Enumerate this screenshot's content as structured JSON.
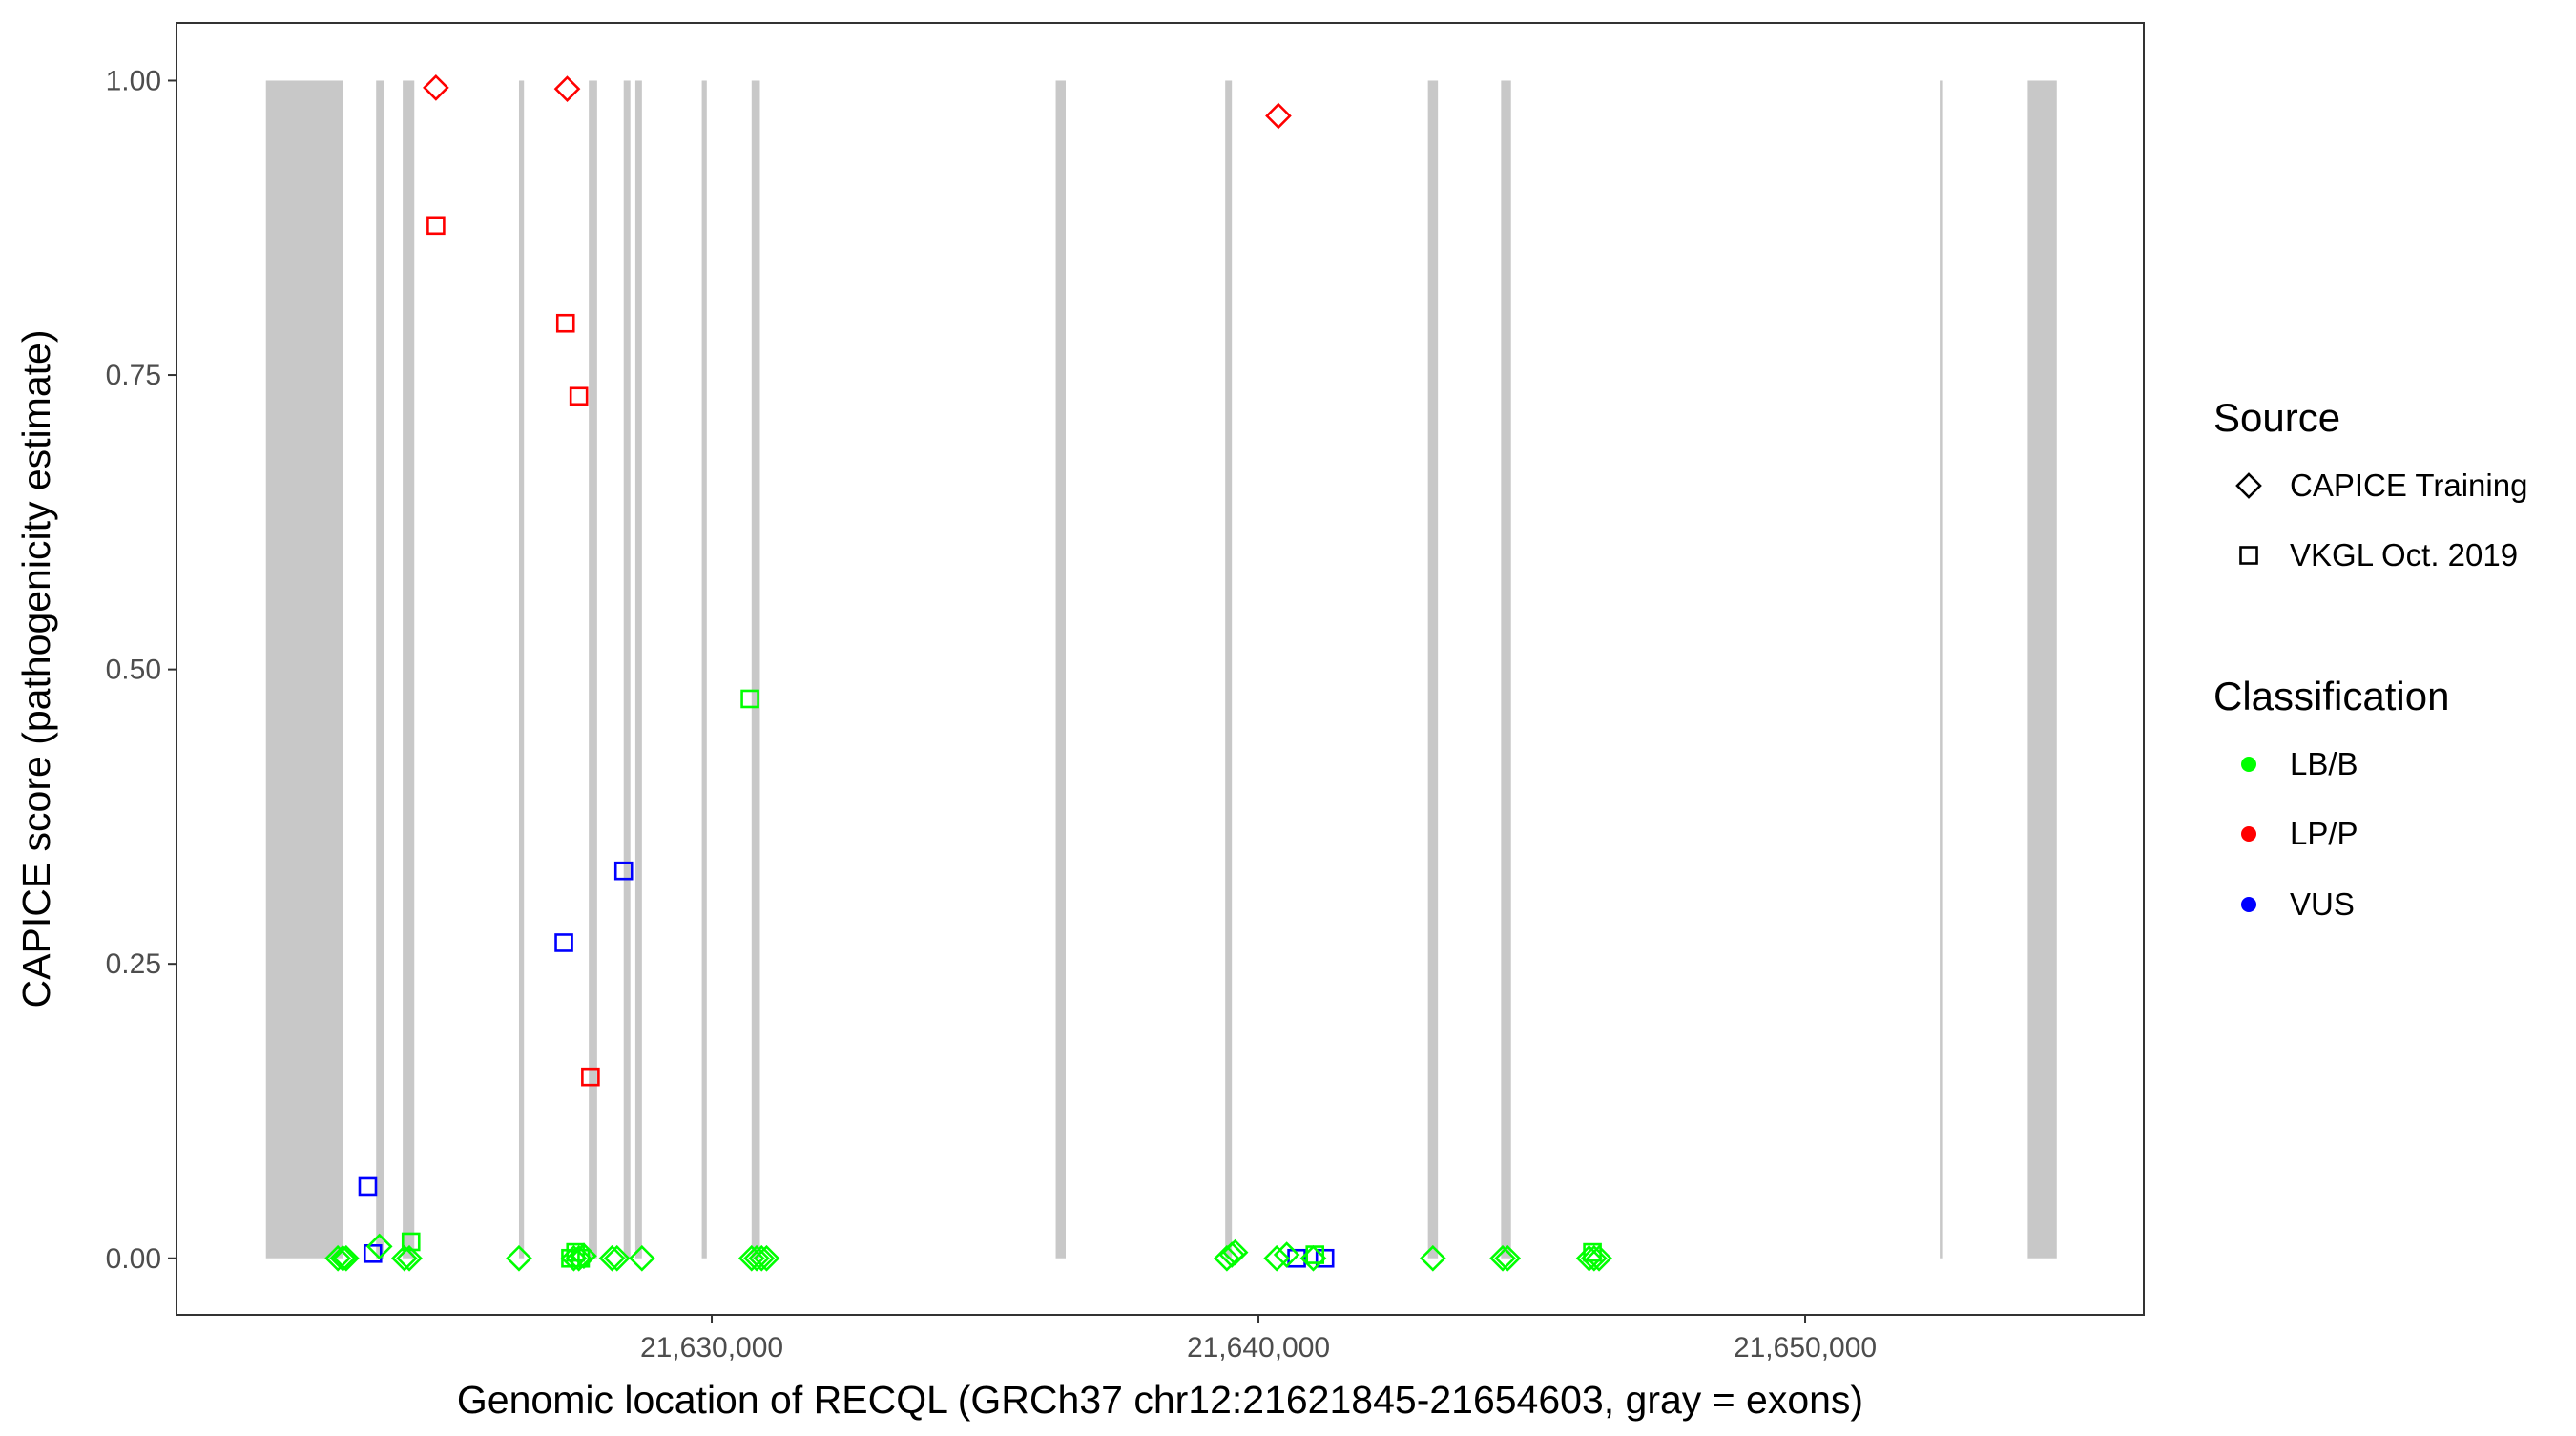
{
  "chart_data": {
    "type": "scatter",
    "title": "",
    "xlabel": "Genomic location of RECQL (GRCh37 chr12:21621845-21654603, gray = exons)",
    "ylabel": "CAPICE score (pathogenicity estimate)",
    "xlim": [
      21620209,
      21656195
    ],
    "ylim": [
      -0.048,
      1.049
    ],
    "x_ticks": [
      21630000,
      21640000,
      21650000
    ],
    "x_tick_labels": [
      "21,630,000",
      "21,640,000",
      "21,650,000"
    ],
    "y_ticks": [
      0,
      0.25,
      0.5,
      0.75,
      1.0
    ],
    "y_tick_labels": [
      "0.00",
      "0.25",
      "0.50",
      "0.75",
      "1.00"
    ],
    "grid": false,
    "legend_position": "right",
    "colors": {
      "LB/B": "#00FF00",
      "LP/P": "#FF0000",
      "VUS": "#0000FF",
      "exon": "#C8C8C8"
    },
    "exons": [
      [
        21621845,
        21623252
      ],
      [
        21623860,
        21624012
      ],
      [
        21624347,
        21624559
      ],
      [
        21626474,
        21626565
      ],
      [
        21627751,
        21627903
      ],
      [
        21628389,
        21628511
      ],
      [
        21628602,
        21628723
      ],
      [
        21629818,
        21629909
      ],
      [
        21630729,
        21630881
      ],
      [
        21636292,
        21636474
      ],
      [
        21639392,
        21639514
      ],
      [
        21643100,
        21643283
      ],
      [
        21644438,
        21644620
      ],
      [
        21652462,
        21652523
      ],
      [
        21654073,
        21654603
      ]
    ],
    "legends": [
      {
        "title": "Source",
        "entries": [
          {
            "label": "CAPICE Training",
            "shape": "diamond"
          },
          {
            "label": "VKGL Oct. 2019",
            "shape": "square"
          }
        ]
      },
      {
        "title": "Classification",
        "entries": [
          {
            "label": "LB/B",
            "shape": "dot"
          },
          {
            "label": "LP/P",
            "shape": "dot"
          },
          {
            "label": "VUS",
            "shape": "dot"
          }
        ]
      }
    ],
    "series": [
      {
        "source": "CAPICE Training",
        "classification": "LP/P",
        "points": [
          [
            21624954,
            0.994
          ],
          [
            21627356,
            0.993
          ],
          [
            21640365,
            0.97
          ]
        ]
      },
      {
        "source": "VKGL Oct. 2019",
        "classification": "LP/P",
        "points": [
          [
            21624954,
            0.877
          ],
          [
            21627325,
            0.794
          ],
          [
            21627568,
            0.732
          ],
          [
            21627781,
            0.154
          ]
        ]
      },
      {
        "source": "VKGL Oct. 2019",
        "classification": "VUS",
        "points": [
          [
            21628389,
            0.329
          ],
          [
            21627295,
            0.268
          ],
          [
            21623708,
            0.061
          ],
          [
            21623800,
            0.004
          ],
          [
            21640699,
            0.0
          ],
          [
            21641216,
            0.0
          ]
        ]
      },
      {
        "source": "VKGL Oct. 2019",
        "classification": "LB/B",
        "points": [
          [
            21630699,
            0.475
          ],
          [
            21624498,
            0.014
          ],
          [
            21627416,
            0.0
          ],
          [
            21627508,
            0.005
          ],
          [
            21627599,
            0.0
          ],
          [
            21641033,
            0.003
          ],
          [
            21646109,
            0.005
          ]
        ]
      },
      {
        "source": "CAPICE Training",
        "classification": "LB/B",
        "points": [
          [
            21623161,
            0.0
          ],
          [
            21623252,
            0.0
          ],
          [
            21623313,
            0.0
          ],
          [
            21623921,
            0.01
          ],
          [
            21624377,
            0.0
          ],
          [
            21624468,
            0.0
          ],
          [
            21626474,
            0.0
          ],
          [
            21627477,
            0.0
          ],
          [
            21627568,
            0.0
          ],
          [
            21627660,
            0.002
          ],
          [
            21628176,
            0.0
          ],
          [
            21628267,
            0.0
          ],
          [
            21628723,
            0.0
          ],
          [
            21630729,
            0.0
          ],
          [
            21630821,
            0.0
          ],
          [
            21630912,
            0.0
          ],
          [
            21631003,
            0.0
          ],
          [
            21639422,
            0.0
          ],
          [
            21639514,
            0.003
          ],
          [
            21639574,
            0.005
          ],
          [
            21640334,
            0.0
          ],
          [
            21640517,
            0.003
          ],
          [
            21641003,
            0.0
          ],
          [
            21643191,
            0.0
          ],
          [
            21644468,
            0.0
          ],
          [
            21644559,
            0.0
          ],
          [
            21646049,
            0.0
          ],
          [
            21646140,
            0.0
          ],
          [
            21646231,
            0.0
          ]
        ]
      }
    ]
  }
}
